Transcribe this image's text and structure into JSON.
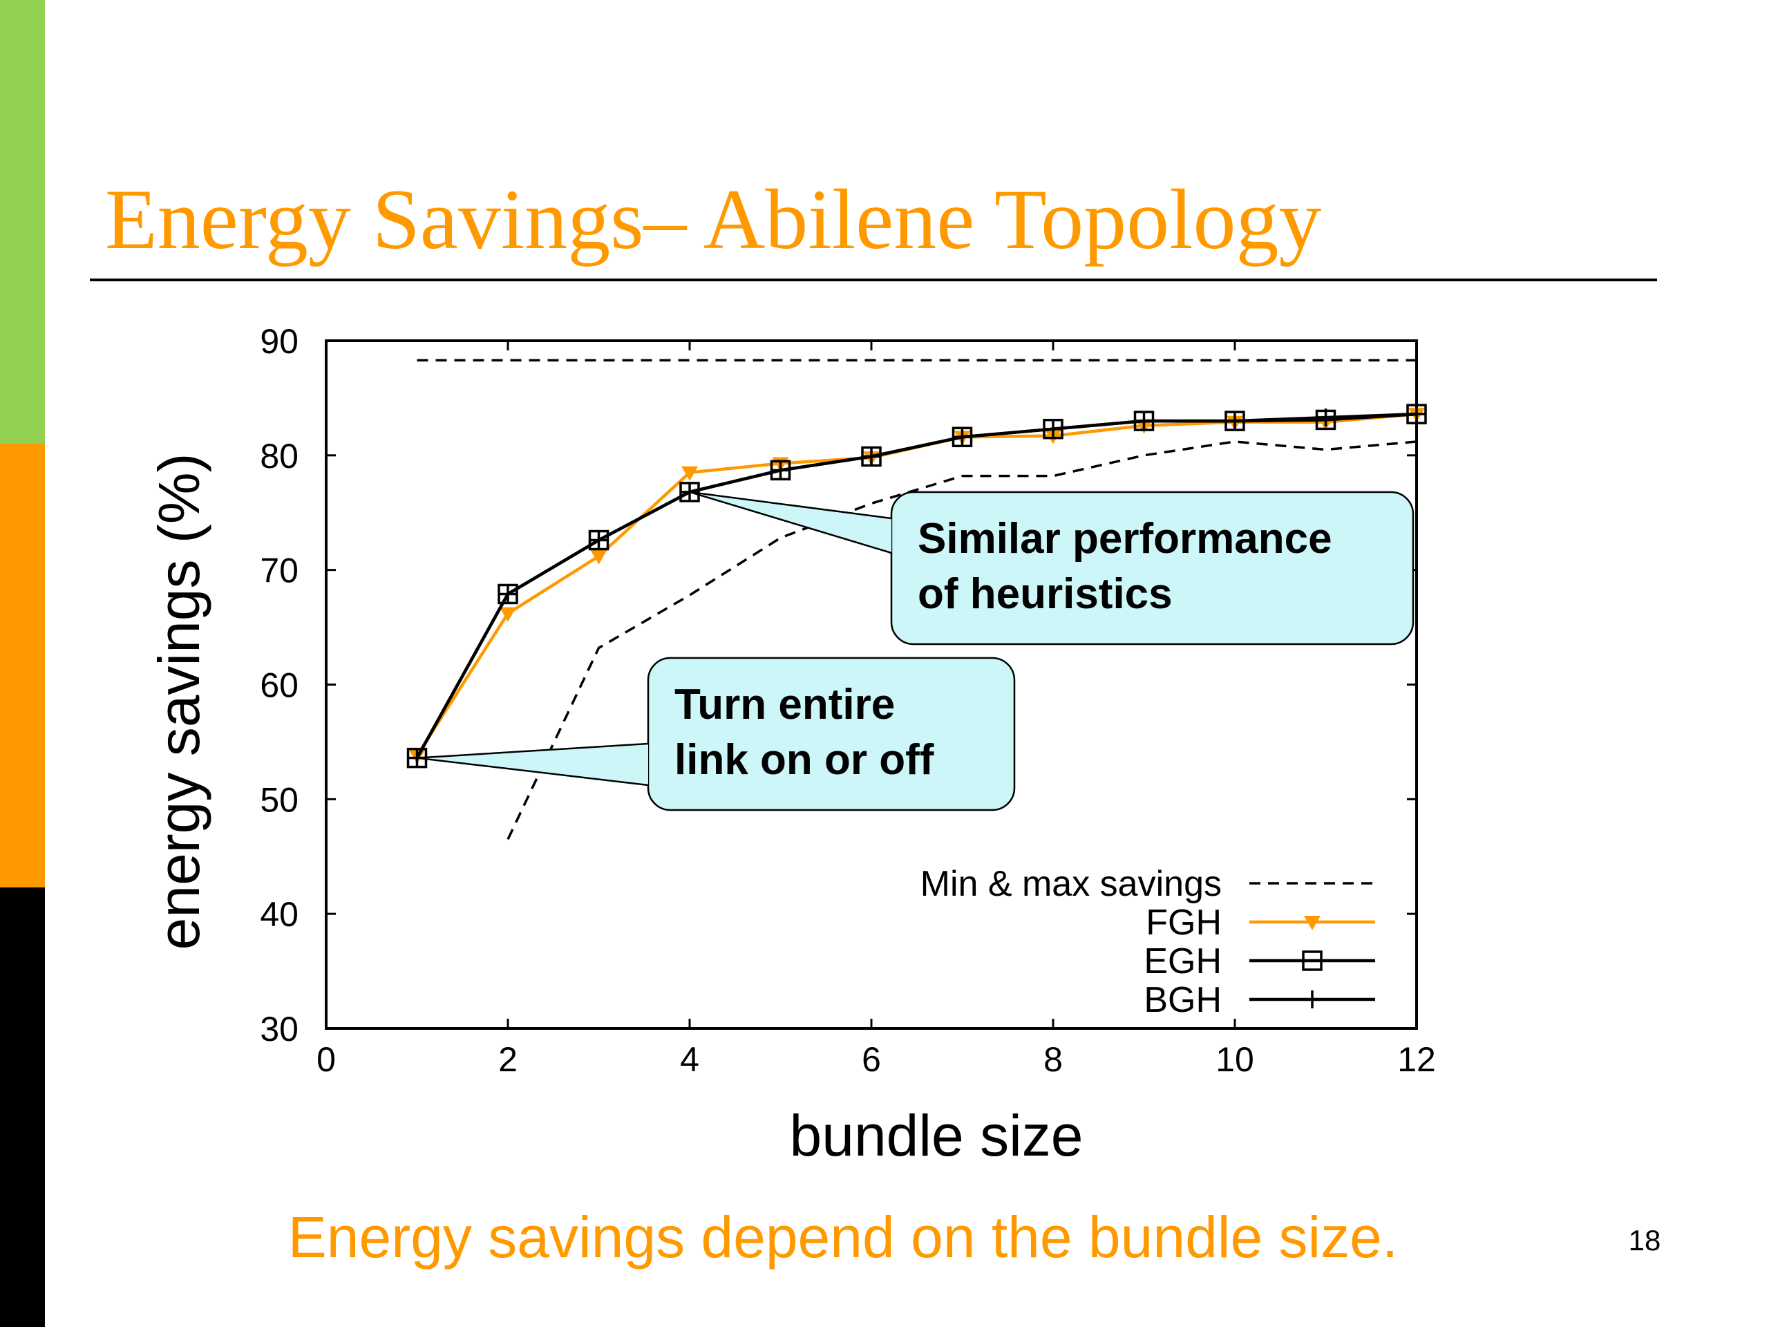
{
  "slide": {
    "title": "Energy Savings– Abilene Topology",
    "caption": "Energy savings depend on the bundle size.",
    "page_number": "18",
    "colors": {
      "accent": "#ff9900",
      "sidebar_top": "#92d050",
      "sidebar_middle": "#ff9900",
      "sidebar_bottom": "#000000",
      "callout_fill": "#ccf6f8"
    }
  },
  "chart_data": {
    "type": "line",
    "title": "",
    "xlabel": "bundle size",
    "ylabel": "energy savings (%)",
    "xlim": [
      0,
      12
    ],
    "ylim": [
      30,
      90
    ],
    "x_ticks": [
      "0",
      "2",
      "4",
      "6",
      "8",
      "10",
      "12"
    ],
    "y_ticks": [
      "30",
      "40",
      "50",
      "60",
      "70",
      "80",
      "90"
    ],
    "grid": false,
    "legend_position": "bottom-right",
    "x": [
      1,
      2,
      3,
      4,
      5,
      6,
      7,
      8,
      9,
      10,
      11,
      12
    ],
    "series": [
      {
        "name": "Min & max savings",
        "style": "dashed",
        "color": "#000000",
        "marker": "none",
        "x": [
          1,
          12
        ],
        "values": [
          88.3,
          88.3
        ]
      },
      {
        "name": "",
        "style": "dashed",
        "color": "#000000",
        "marker": "none",
        "x": [
          2,
          3,
          4,
          5,
          6,
          7,
          8,
          9,
          10,
          11,
          12
        ],
        "values": [
          46.5,
          63.2,
          67.8,
          72.8,
          75.8,
          78.2,
          78.2,
          80.0,
          81.2,
          80.5,
          81.2
        ]
      },
      {
        "name": "FGH",
        "style": "solid",
        "color": "#ff9900",
        "marker": "triangle-down",
        "x": [
          1,
          2,
          3,
          4,
          5,
          6,
          7,
          8,
          9,
          10,
          11,
          12
        ],
        "values": [
          53.8,
          66.2,
          71.2,
          78.5,
          79.3,
          79.8,
          81.6,
          81.7,
          82.6,
          82.9,
          82.9,
          83.6
        ]
      },
      {
        "name": "EGH",
        "style": "solid",
        "color": "#000000",
        "marker": "square",
        "x": [
          1,
          2,
          3,
          4,
          5,
          6,
          7,
          8,
          9,
          10,
          11,
          12
        ],
        "values": [
          53.6,
          67.9,
          72.6,
          76.8,
          78.7,
          79.9,
          81.6,
          82.3,
          83.0,
          83.0,
          83.1,
          83.6
        ]
      },
      {
        "name": "BGH",
        "style": "solid",
        "color": "#000000",
        "marker": "plus",
        "x": [
          1,
          2,
          3,
          4,
          5,
          6,
          7,
          8,
          9,
          10,
          11,
          12
        ],
        "values": [
          53.6,
          67.9,
          72.6,
          76.8,
          78.7,
          79.9,
          81.6,
          82.3,
          83.0,
          83.0,
          83.3,
          83.6
        ]
      }
    ],
    "annotations": [
      {
        "lines": [
          "Similar performance",
          "of heuristics"
        ],
        "points_to": {
          "x": 4,
          "y": 76.8
        }
      },
      {
        "lines": [
          "Turn entire",
          "link on or off"
        ],
        "points_to": {
          "x": 1,
          "y": 53.6
        }
      }
    ]
  }
}
